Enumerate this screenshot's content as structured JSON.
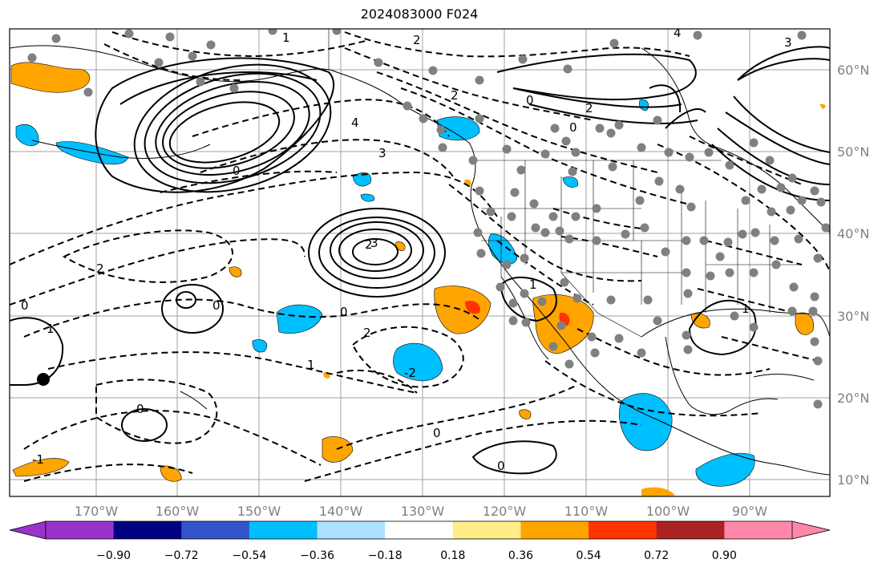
{
  "title": "2024083000 F024",
  "map": {
    "lon_ticks": [
      "170°W",
      "160°W",
      "150°W",
      "140°W",
      "130°W",
      "120°W",
      "110°W",
      "100°W",
      "90°W"
    ],
    "lat_ticks": [
      "60°N",
      "50°N",
      "40°N",
      "30°N",
      "20°N",
      "10°N"
    ],
    "contour_labels": [
      "0",
      "1",
      "2",
      "3",
      "4",
      "-1",
      "-2",
      "-3"
    ],
    "marker": "black station dot",
    "stipple": "gray dots over continental interior"
  },
  "colorbar": {
    "levels": [
      "−0.90",
      "−0.72",
      "−0.54",
      "−0.36",
      "−0.18",
      "0.18",
      "0.36",
      "0.54",
      "0.72",
      "0.90"
    ],
    "colors": [
      "#9933cc",
      "#000080",
      "#3355cc",
      "#00bfff",
      "#aee0ff",
      "#ffffff",
      "#ffee88",
      "#ffa500",
      "#ff3300",
      "#aa2222",
      "#ff88aa"
    ],
    "extend_low_color": "#9933cc",
    "extend_high_color": "#ff88aa"
  }
}
